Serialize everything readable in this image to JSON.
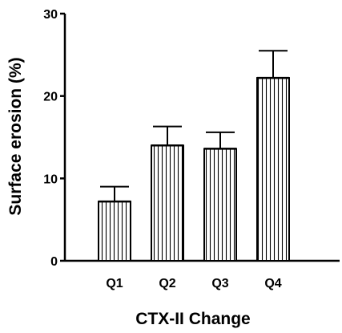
{
  "chart_data": {
    "type": "bar",
    "categories": [
      "Q1",
      "Q2",
      "Q3",
      "Q4"
    ],
    "values": [
      7.2,
      14.0,
      13.6,
      22.2
    ],
    "errors": [
      1.8,
      2.3,
      2.0,
      3.3
    ],
    "title": "",
    "xlabel": "CTX-II Change",
    "ylabel": "Surface erosion (%)",
    "ylim": [
      0,
      30
    ],
    "yticks": [
      0,
      10,
      20,
      30
    ],
    "grid": false,
    "bar_fill": "vertical-hatch",
    "colors": {
      "stroke": "#000000",
      "fill": "#ffffff"
    }
  }
}
